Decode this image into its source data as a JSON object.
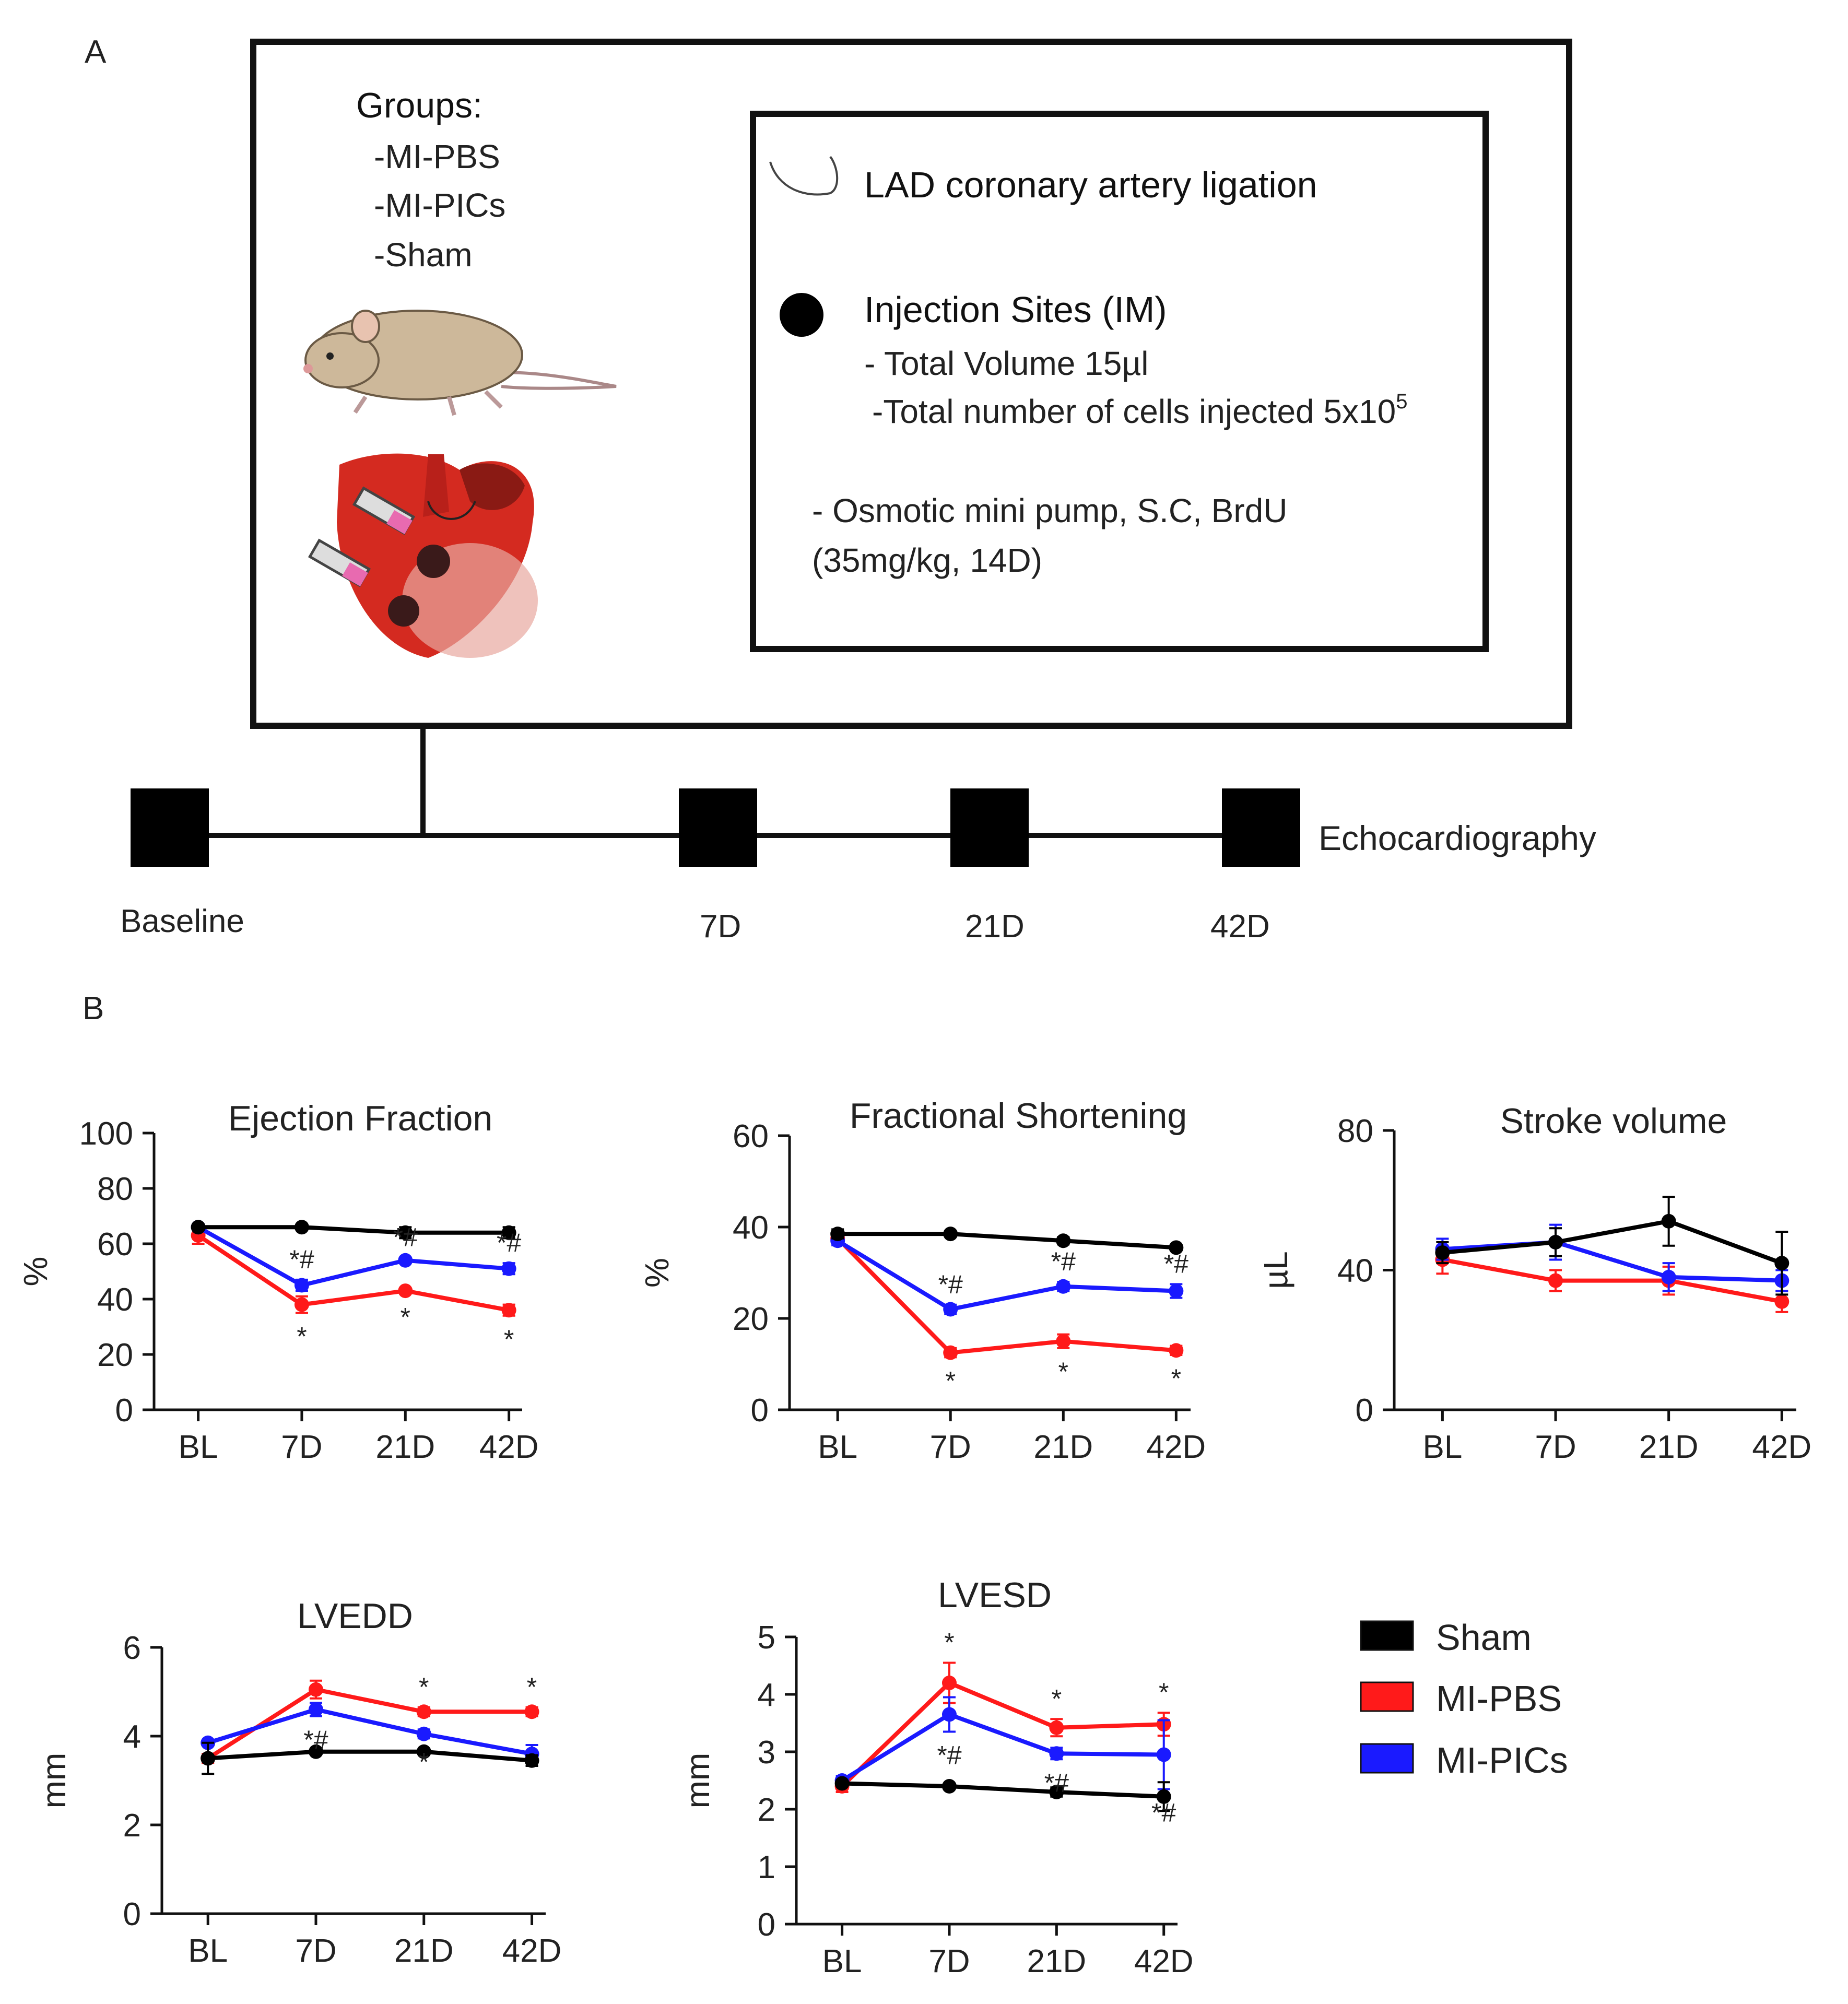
{
  "panel_a": {
    "letter": "A",
    "groups": {
      "title": "Groups:",
      "items": [
        "-MI-PBS",
        "-MI-PICs",
        "-Sham"
      ]
    },
    "procedure": {
      "ligation": "LAD coronary artery ligation",
      "injection_title": "Injection Sites (IM)",
      "volume": "- Total Volume 15µl",
      "cells": "-Total number of cells injected 5x10",
      "cells_exp": "5",
      "pump_line1": "- Osmotic mini pump, S.C, BrdU",
      "pump_line2": "(35mg/kg, 14D)"
    },
    "timeline": {
      "points": [
        "Baseline",
        "7D",
        "21D",
        "42D"
      ],
      "label": "Echocardiography"
    }
  },
  "panel_b": {
    "letter": "B"
  },
  "legend": [
    {
      "name": "Sham",
      "color": "#000000"
    },
    {
      "name": "MI-PBS",
      "color": "#ff1a1a"
    },
    {
      "name": "MI-PICs",
      "color": "#1a1aff"
    }
  ],
  "chart_data": [
    {
      "type": "line",
      "title": "Ejection Fraction",
      "ylabel": "%",
      "categories": [
        "BL",
        "7D",
        "21D",
        "42D"
      ],
      "ylim": [
        0,
        100
      ],
      "yticks": [
        "0",
        "20",
        "40",
        "60",
        "80",
        "100"
      ],
      "series": [
        {
          "name": "Sham",
          "color": "#000000",
          "values": [
            66,
            66,
            64,
            64
          ],
          "errors": [
            1,
            1,
            2,
            2
          ]
        },
        {
          "name": "MI-PBS",
          "color": "#ff1a1a",
          "values": [
            63,
            38,
            43,
            36
          ],
          "errors": [
            3,
            3,
            1,
            2
          ]
        },
        {
          "name": "MI-PICs",
          "color": "#1a1aff",
          "values": [
            66,
            45,
            54,
            51
          ],
          "errors": [
            1,
            2,
            1,
            2
          ]
        }
      ],
      "annotations": {
        "blue_above": [
          "",
          "*#",
          "*#",
          "*#"
        ],
        "red_below": [
          "",
          "*",
          "*",
          "*"
        ]
      }
    },
    {
      "type": "line",
      "title": "Fractional Shortening",
      "ylabel": "%",
      "categories": [
        "BL",
        "7D",
        "21D",
        "42D"
      ],
      "ylim": [
        0,
        60
      ],
      "yticks": [
        "0",
        "20",
        "40",
        "60"
      ],
      "series": [
        {
          "name": "Sham",
          "color": "#000000",
          "values": [
            38.5,
            38.5,
            37,
            35.5
          ],
          "errors": [
            1,
            0.5,
            0.8,
            0.5
          ]
        },
        {
          "name": "MI-PBS",
          "color": "#ff1a1a",
          "values": [
            37.5,
            12.5,
            15,
            13
          ],
          "errors": [
            1,
            1,
            1.5,
            1
          ]
        },
        {
          "name": "MI-PICs",
          "color": "#1a1aff",
          "values": [
            37,
            22,
            27,
            26
          ],
          "errors": [
            1,
            1,
            1,
            1.5
          ]
        }
      ],
      "annotations": {
        "blue_above": [
          "",
          "*#",
          "*#",
          "*#"
        ],
        "red_below": [
          "",
          "*",
          "*",
          "*"
        ]
      }
    },
    {
      "type": "line",
      "title": "Stroke volume",
      "ylabel": "µL",
      "categories": [
        "BL",
        "7D",
        "21D",
        "42D"
      ],
      "ylim": [
        0,
        80
      ],
      "yticks": [
        "0",
        "40",
        "80"
      ],
      "series": [
        {
          "name": "Sham",
          "color": "#000000",
          "values": [
            45,
            48,
            54,
            42
          ],
          "errors": [
            3,
            4,
            7,
            9
          ]
        },
        {
          "name": "MI-PBS",
          "color": "#ff1a1a",
          "values": [
            43,
            37,
            37,
            31
          ],
          "errors": [
            4,
            3,
            4,
            3
          ]
        },
        {
          "name": "MI-PICs",
          "color": "#1a1aff",
          "values": [
            46,
            48,
            38,
            37
          ],
          "errors": [
            3,
            5,
            4,
            3
          ]
        }
      ],
      "annotations": {
        "blue_above": [
          "",
          "",
          "",
          ""
        ],
        "red_below": [
          "",
          "",
          "",
          ""
        ]
      }
    },
    {
      "type": "line",
      "title": "LVEDD",
      "ylabel": "mm",
      "categories": [
        "BL",
        "7D",
        "21D",
        "42D"
      ],
      "ylim": [
        0,
        6
      ],
      "yticks": [
        "0",
        "2",
        "4",
        "6"
      ],
      "series": [
        {
          "name": "Sham",
          "color": "#000000",
          "values": [
            3.5,
            3.65,
            3.65,
            3.45
          ],
          "errors": [
            0.35,
            0.05,
            0.05,
            0.12
          ]
        },
        {
          "name": "MI-PBS",
          "color": "#ff1a1a",
          "values": [
            3.5,
            5.05,
            4.55,
            4.55
          ],
          "errors": [
            0.1,
            0.2,
            0.1,
            0.1
          ]
        },
        {
          "name": "MI-PICs",
          "color": "#1a1aff",
          "values": [
            3.85,
            4.6,
            4.05,
            3.6
          ],
          "errors": [
            0.05,
            0.15,
            0.1,
            0.2
          ]
        }
      ],
      "annotations": {
        "red_above": [
          "",
          "",
          "*",
          "*"
        ],
        "blue_below": [
          "",
          "*#",
          "*",
          ""
        ]
      }
    },
    {
      "type": "line",
      "title": "LVESD",
      "ylabel": "mm",
      "categories": [
        "BL",
        "7D",
        "21D",
        "42D"
      ],
      "ylim": [
        0,
        5
      ],
      "yticks": [
        "0",
        "1",
        "2",
        "3",
        "4",
        "5"
      ],
      "series": [
        {
          "name": "Sham",
          "color": "#000000",
          "values": [
            2.45,
            2.4,
            2.3,
            2.22
          ],
          "errors": [
            0.05,
            0.03,
            0.08,
            0.25
          ]
        },
        {
          "name": "MI-PBS",
          "color": "#ff1a1a",
          "values": [
            2.4,
            4.2,
            3.42,
            3.48
          ],
          "errors": [
            0.1,
            0.35,
            0.15,
            0.2
          ]
        },
        {
          "name": "MI-PICs",
          "color": "#1a1aff",
          "values": [
            2.5,
            3.65,
            2.97,
            2.95
          ],
          "errors": [
            0.08,
            0.3,
            0.1,
            0.6
          ]
        }
      ],
      "annotations": {
        "red_above": [
          "",
          "*",
          "*",
          "*"
        ],
        "blue_below": [
          "",
          "*#",
          "*#",
          "*#"
        ]
      }
    }
  ]
}
